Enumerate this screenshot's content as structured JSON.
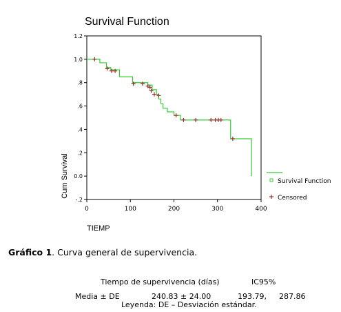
{
  "chart_data": {
    "type": "line",
    "title": "Survival Function",
    "xlabel": "TIEMP",
    "ylabel": "Cum Survival",
    "xlim": [
      0,
      400
    ],
    "ylim": [
      -0.2,
      1.2
    ],
    "xticks": [
      0,
      100,
      200,
      300,
      400
    ],
    "xtick_labels": [
      "0",
      "100",
      "200",
      "300",
      "400"
    ],
    "yticks": [
      1.2,
      1.0,
      0.8,
      0.6,
      0.4,
      0.2,
      0.0,
      -0.2
    ],
    "ytick_labels": [
      "1.2",
      "1.0",
      ".8",
      ".6",
      ".4",
      ".2",
      "0.0",
      "-.2"
    ],
    "grid": false,
    "legend_position": "right",
    "series": [
      {
        "name": "Survival Function",
        "color": "#33cc33",
        "style": "step",
        "x": [
          0,
          10,
          30,
          45,
          55,
          75,
          105,
          140,
          150,
          160,
          165,
          170,
          175,
          185,
          200,
          215,
          225,
          310,
          330,
          375,
          378
        ],
        "y": [
          1.0,
          1.0,
          0.97,
          0.93,
          0.91,
          0.85,
          0.8,
          0.78,
          0.74,
          0.7,
          0.66,
          0.62,
          0.58,
          0.55,
          0.52,
          0.48,
          0.48,
          0.48,
          0.32,
          0.32,
          0.0
        ]
      },
      {
        "name": "Censored",
        "color": "#993333",
        "style": "marker",
        "x": [
          18,
          47,
          57,
          65,
          107,
          128,
          140,
          145,
          148,
          155,
          165,
          205,
          222,
          250,
          285,
          295,
          302,
          308,
          335
        ],
        "y": [
          1.0,
          0.92,
          0.9,
          0.9,
          0.79,
          0.79,
          0.77,
          0.76,
          0.73,
          0.7,
          0.69,
          0.52,
          0.48,
          0.48,
          0.48,
          0.48,
          0.48,
          0.48,
          0.32
        ]
      }
    ]
  },
  "caption": {
    "label": "Gráfico 1",
    "text": ". Curva general de supervivencia."
  },
  "stats_table": {
    "header_left": "Tiempo de supervivencia (días)",
    "header_right": "IC95%",
    "row_label": "Media ± DE",
    "row_value": "240.83 ± 24.00",
    "ci_low": "193.79,",
    "ci_high": "287.86",
    "legend_note": "Leyenda: DE – Desviación estándar."
  }
}
